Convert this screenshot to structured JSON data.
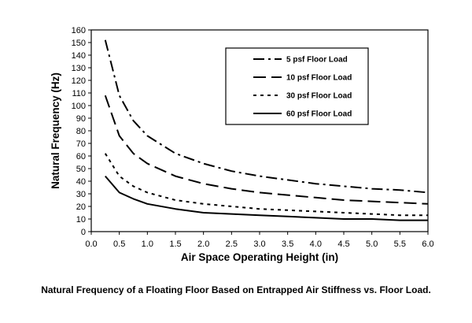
{
  "chart_data": {
    "type": "line",
    "title": "",
    "caption": "Natural Frequency of a Floating Floor Based on Entrapped Air Stiffness vs. Floor Load.",
    "xlabel": "Air Space Operating Height (in)",
    "ylabel": "Natural Frequency (Hz)",
    "xlim": [
      0,
      6.0
    ],
    "ylim": [
      0,
      160
    ],
    "x_ticks": [
      "0.0",
      "0.5",
      "1.0",
      "1.5",
      "2.0",
      "2.5",
      "3.0",
      "3.5",
      "4.0",
      "4.5",
      "5.0",
      "5.5",
      "6.0"
    ],
    "y_ticks": [
      "0",
      "10",
      "20",
      "30",
      "40",
      "50",
      "60",
      "70",
      "80",
      "90",
      "100",
      "110",
      "120",
      "130",
      "140",
      "150",
      "160"
    ],
    "grid": false,
    "legend_position": "top-right",
    "series": [
      {
        "name": "5 psf Floor Load",
        "style": "dash-dot",
        "x": [
          0.25,
          0.5,
          0.75,
          1.0,
          1.5,
          2.0,
          2.5,
          3.0,
          3.5,
          4.0,
          4.5,
          5.0,
          5.5,
          6.0
        ],
        "y": [
          152,
          108,
          88,
          76,
          62,
          54,
          48,
          44,
          41,
          38,
          36,
          34,
          33,
          31
        ]
      },
      {
        "name": "10 psf Floor Load",
        "style": "long-dash",
        "x": [
          0.25,
          0.5,
          0.75,
          1.0,
          1.5,
          2.0,
          2.5,
          3.0,
          3.5,
          4.0,
          4.5,
          5.0,
          5.5,
          6.0
        ],
        "y": [
          108,
          76,
          62,
          54,
          44,
          38,
          34,
          31,
          29,
          27,
          25,
          24,
          23,
          22
        ]
      },
      {
        "name": "30 psf Floor Load",
        "style": "dotted",
        "x": [
          0.25,
          0.5,
          0.75,
          1.0,
          1.5,
          2.0,
          2.5,
          3.0,
          3.5,
          4.0,
          4.5,
          5.0,
          5.5,
          6.0
        ],
        "y": [
          62,
          44,
          36,
          31,
          25,
          22,
          20,
          18,
          17,
          16,
          15,
          14,
          13,
          13
        ]
      },
      {
        "name": "60 psf Floor Load",
        "style": "solid",
        "x": [
          0.25,
          0.5,
          0.75,
          1.0,
          1.5,
          2.0,
          2.5,
          3.0,
          3.5,
          4.0,
          4.5,
          5.0,
          5.5,
          6.0
        ],
        "y": [
          44,
          31,
          26,
          22,
          18,
          15,
          14,
          13,
          12,
          11,
          10,
          10,
          9,
          9
        ]
      }
    ]
  }
}
